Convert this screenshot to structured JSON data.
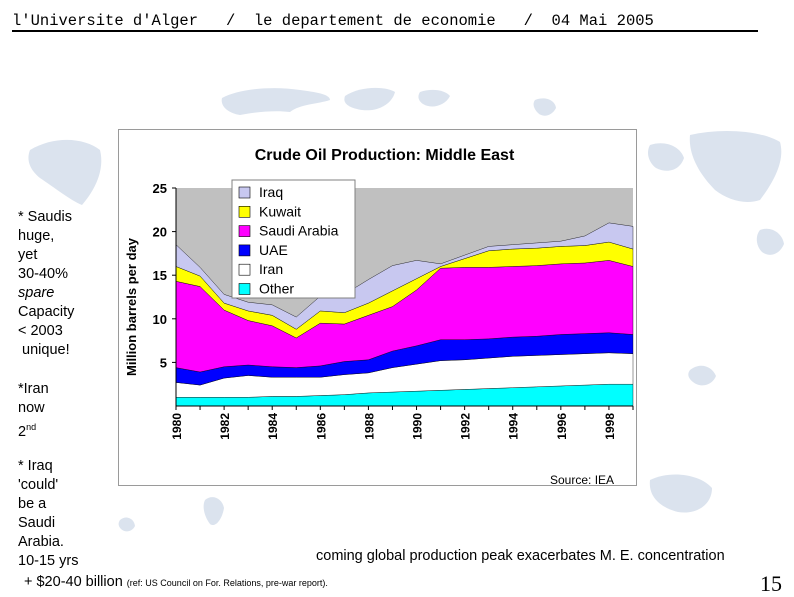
{
  "header": {
    "university": "l'Universite d'Alger",
    "sep1": "/",
    "department": "le departement de economie",
    "sep2": "/",
    "date": "04 Mai 2005"
  },
  "notes": {
    "saudis": [
      "* Saudis",
      "huge,",
      "yet",
      "30-40%",
      "spare",
      "Capacity",
      "< 2003",
      " unique!"
    ],
    "iran": [
      "*Iran",
      "now",
      "2",
      "nd"
    ],
    "iraq": [
      "* Iraq",
      "'could'",
      "be a",
      "Saudi",
      "Arabia.",
      "10-15 yrs"
    ]
  },
  "source": "Source: IEA",
  "caption": "coming global production peak exacerbates M. E. concentration",
  "bottom": {
    "main": "+ $20-40 billion",
    "ref": "(ref: US Council on For. Relations, pre-war report)."
  },
  "page_number": "15",
  "colors": {
    "Iraq": "#c8c8f0",
    "Kuwait": "#ffff00",
    "Saudi Arabia": "#ff00ff",
    "UAE": "#0000ff",
    "Iran": "#ffffff",
    "Other": "#00ffff",
    "plot_bg": "#c0c0c0",
    "map": "#dbe3ee"
  },
  "chart_data": {
    "type": "area",
    "title": "Crude Oil Production: Middle East",
    "xlabel": "",
    "ylabel": "Million barrels per day",
    "ylim": [
      0,
      25
    ],
    "yticks": [
      5,
      10,
      15,
      20,
      25
    ],
    "x": [
      1980,
      1981,
      1982,
      1983,
      1984,
      1985,
      1986,
      1987,
      1988,
      1989,
      1990,
      1991,
      1992,
      1993,
      1994,
      1995,
      1996,
      1997,
      1998,
      1999
    ],
    "xticks": [
      "1980",
      "1982",
      "1984",
      "1986",
      "1988",
      "1990",
      "1992",
      "1994",
      "1996",
      "1998"
    ],
    "stacked": true,
    "series": [
      {
        "name": "Other",
        "values": [
          1.0,
          1.0,
          1.0,
          1.0,
          1.1,
          1.1,
          1.2,
          1.3,
          1.5,
          1.6,
          1.7,
          1.8,
          1.9,
          2.0,
          2.1,
          2.2,
          2.3,
          2.4,
          2.5,
          2.5
        ]
      },
      {
        "name": "Iran",
        "values": [
          1.7,
          1.4,
          2.2,
          2.5,
          2.2,
          2.2,
          2.1,
          2.3,
          2.3,
          2.8,
          3.1,
          3.4,
          3.4,
          3.5,
          3.6,
          3.6,
          3.6,
          3.6,
          3.6,
          3.5
        ]
      },
      {
        "name": "UAE",
        "values": [
          1.7,
          1.5,
          1.3,
          1.2,
          1.2,
          1.1,
          1.3,
          1.5,
          1.5,
          1.9,
          2.1,
          2.4,
          2.3,
          2.2,
          2.2,
          2.2,
          2.3,
          2.3,
          2.3,
          2.2
        ]
      },
      {
        "name": "Saudi Arabia",
        "values": [
          9.9,
          9.8,
          6.5,
          5.1,
          4.7,
          3.4,
          4.9,
          4.3,
          5.1,
          5.1,
          6.4,
          8.2,
          8.3,
          8.2,
          8.1,
          8.1,
          8.1,
          8.1,
          8.3,
          7.8
        ]
      },
      {
        "name": "Kuwait",
        "values": [
          1.7,
          1.2,
          0.8,
          1.1,
          1.2,
          1.0,
          1.4,
          1.3,
          1.4,
          1.8,
          1.3,
          0.2,
          1.0,
          1.9,
          2.0,
          2.0,
          2.0,
          2.0,
          2.1,
          2.0
        ]
      },
      {
        "name": "Iraq",
        "values": [
          2.5,
          1.0,
          1.0,
          1.0,
          1.2,
          1.4,
          1.7,
          2.1,
          2.7,
          2.9,
          2.1,
          0.3,
          0.4,
          0.5,
          0.5,
          0.6,
          0.6,
          1.1,
          2.2,
          2.6
        ]
      }
    ],
    "legend": [
      "Iraq",
      "Kuwait",
      "Saudi Arabia",
      "UAE",
      "Iran",
      "Other"
    ],
    "legend_position": "top-left",
    "grid": false
  }
}
